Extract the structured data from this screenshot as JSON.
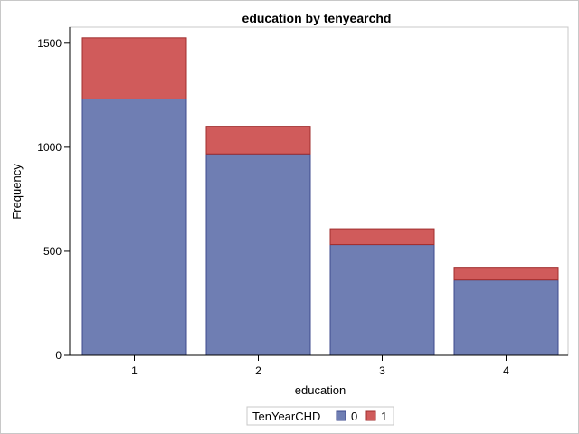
{
  "chart_data": {
    "type": "bar",
    "stacked": true,
    "title": "education by tenyearchd",
    "xlabel": "education",
    "ylabel": "Frequency",
    "categories": [
      "1",
      "2",
      "3",
      "4"
    ],
    "series": [
      {
        "name": "0",
        "values": [
          1232,
          968,
          532,
          362
        ],
        "color": "#6F7EB3"
      },
      {
        "name": "1",
        "values": [
          294,
          133,
          76,
          61
        ],
        "color": "#D05B5B"
      }
    ],
    "ylim": [
      0,
      1560
    ],
    "yticks": [
      0,
      500,
      1000,
      1500
    ],
    "legend": {
      "title": "TenYearCHD",
      "position": "bottom-center"
    }
  }
}
